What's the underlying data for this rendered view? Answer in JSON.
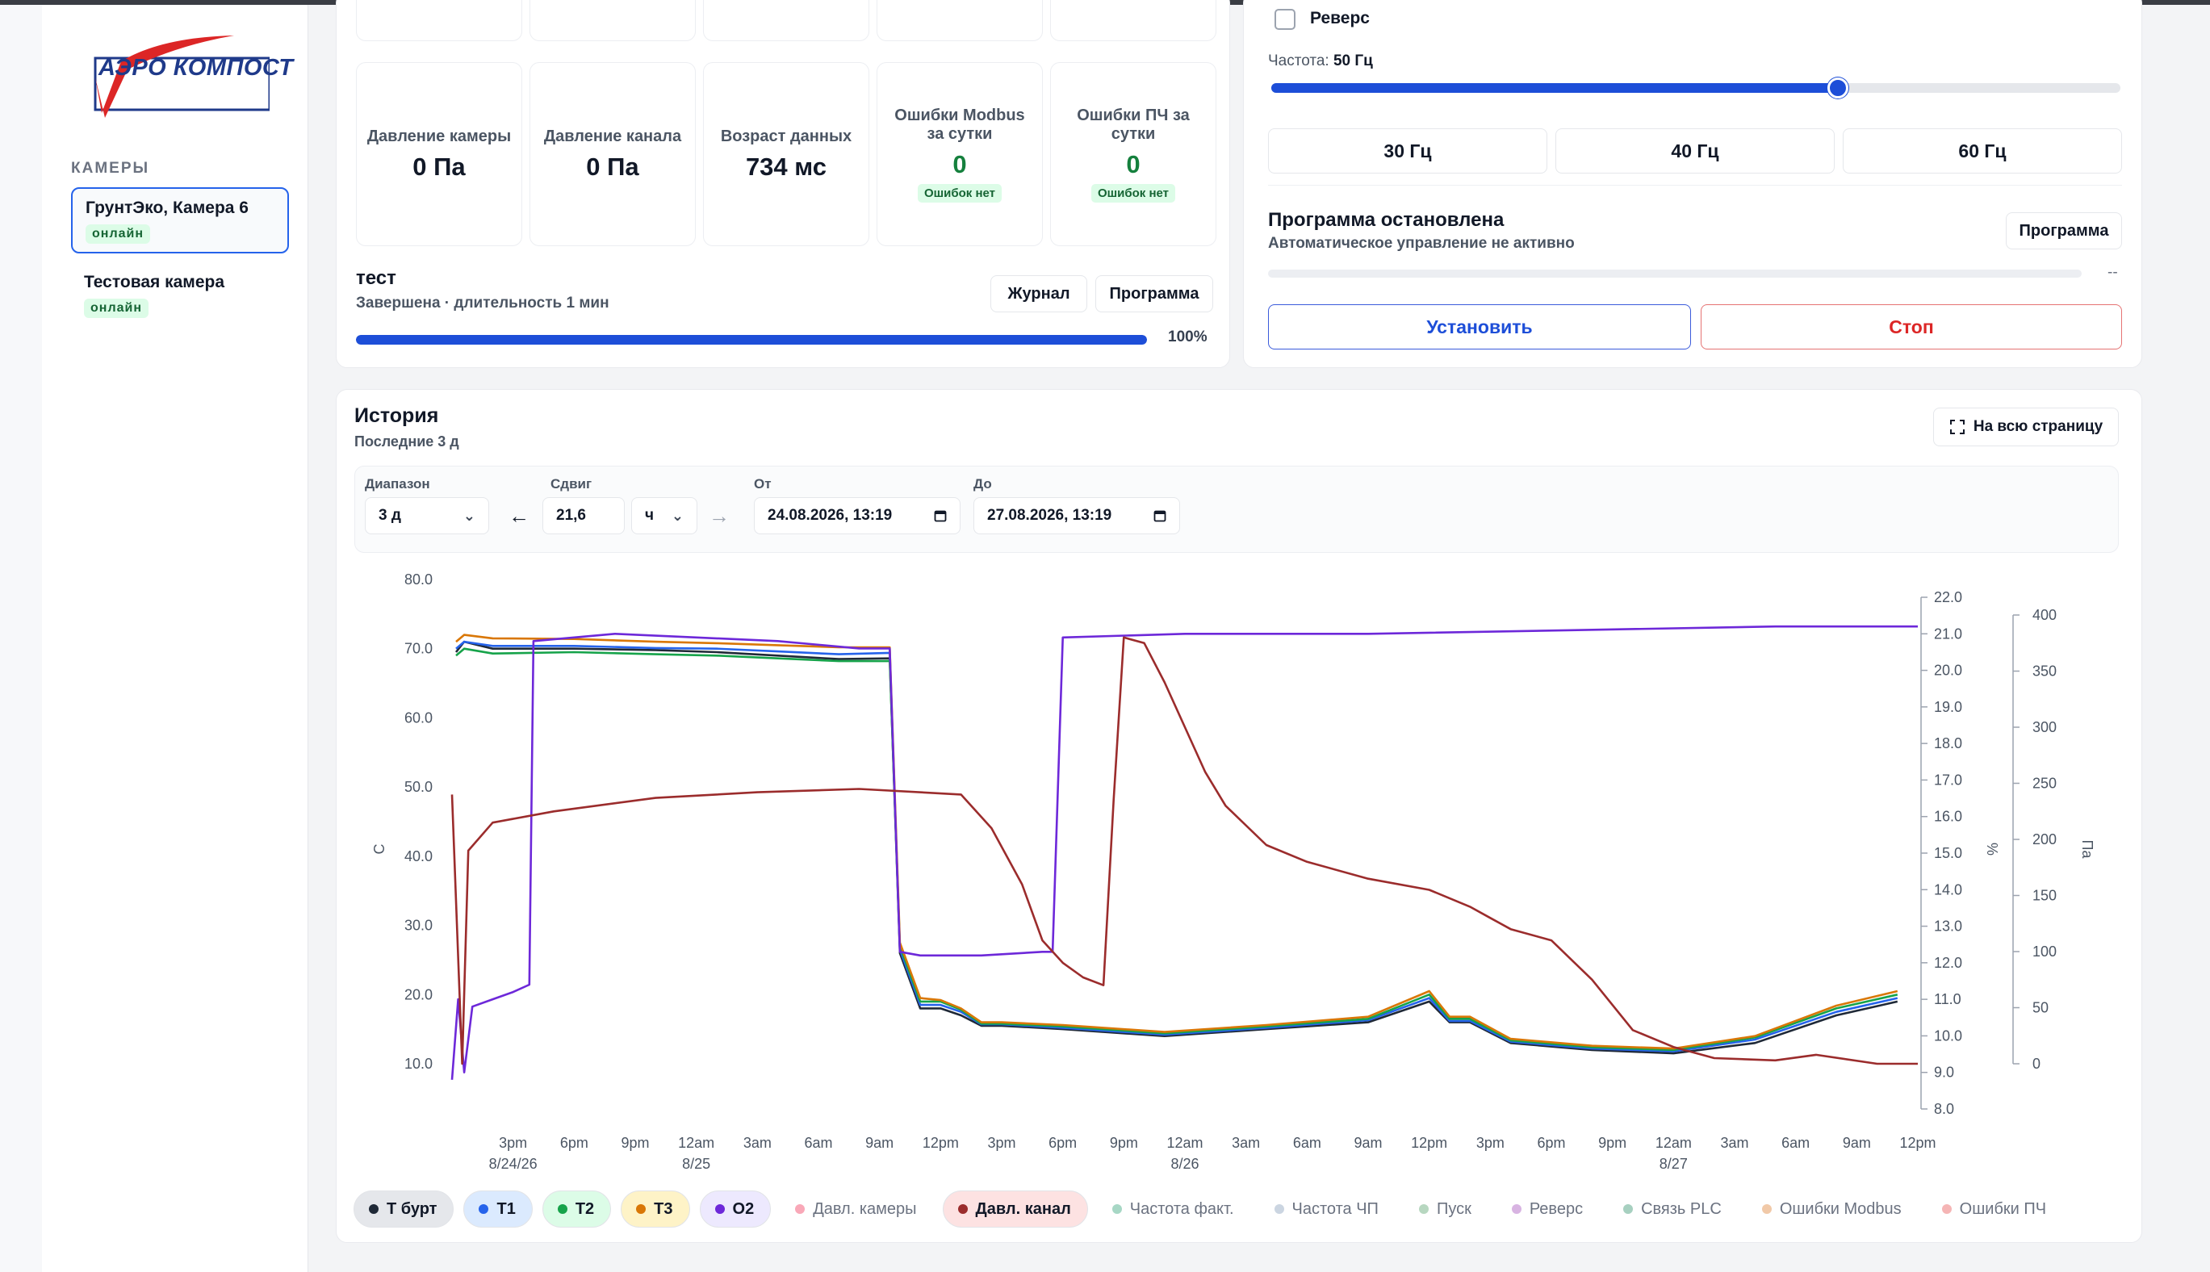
{
  "app": {
    "logo_text": "АЭРО КОМПОСТ"
  },
  "sidebar": {
    "section_label": "КАМЕРЫ",
    "cameras": [
      {
        "name": "ГрунтЭко, Камера 6",
        "status": "онлайн",
        "active": true
      },
      {
        "name": "Тестовая камера",
        "status": "онлайн",
        "active": false
      }
    ]
  },
  "metrics": [
    {
      "label": "Давление камеры",
      "value": "0 Па"
    },
    {
      "label": "Давление канала",
      "value": "0 Па"
    },
    {
      "label": "Возраст данных",
      "value": "734 мс"
    },
    {
      "label": "Ошибки Modbus за сутки",
      "value": "0",
      "badge": "Ошибок нет"
    },
    {
      "label": "Ошибки ПЧ за сутки",
      "value": "0",
      "badge": "Ошибок нет"
    }
  ],
  "program_run": {
    "title": "тест",
    "subtitle": "Завершена · длительность 1 мин",
    "journal_label": "Журнал",
    "program_label": "Программа",
    "progress": 1.0,
    "progress_text": "100%"
  },
  "control": {
    "reverse_label": "Реверс",
    "reverse_checked": false,
    "freq_label": "Частота:",
    "freq_value": "50 Гц",
    "freq_fraction": 0.667,
    "presets": [
      "30 Гц",
      "40 Гц",
      "60 Гц"
    ],
    "program_title": "Программа остановлена",
    "program_subtitle": "Автоматическое управление не активно",
    "program_button": "Программа",
    "program_progress_text": "--",
    "set_label": "Установить",
    "stop_label": "Стоп"
  },
  "history": {
    "title": "История",
    "subtitle": "Последние 3 д",
    "fullscreen_label": "На всю страницу",
    "range_label": "Диапазон",
    "range_value": "3 д",
    "shift_label": "Сдвиг",
    "shift_value": "21,6",
    "shift_unit": "ч",
    "from_label": "От",
    "from_value": "24.08.2026, 13:19",
    "to_label": "До",
    "to_value": "27.08.2026, 13:19"
  },
  "legend": [
    {
      "label": "Т бурт",
      "color": "#1f2937",
      "bg": "#e5e7eb",
      "on": true
    },
    {
      "label": "T1",
      "color": "#2563eb",
      "bg": "#dbeafe",
      "on": true
    },
    {
      "label": "T2",
      "color": "#16a34a",
      "bg": "#dcfce7",
      "on": true
    },
    {
      "label": "T3",
      "color": "#d97706",
      "bg": "#fef3c7",
      "on": true
    },
    {
      "label": "O2",
      "color": "#6d28d9",
      "bg": "#ede9fe",
      "on": true
    },
    {
      "label": "Давл. камеры",
      "color": "#f9a8b8",
      "bg": "#ffffff",
      "on": false
    },
    {
      "label": "Давл. канал",
      "color": "#9b2c2c",
      "bg": "#fde2e2",
      "on": true
    },
    {
      "label": "Частота факт.",
      "color": "#a7d7c5",
      "bg": "#ffffff",
      "on": false
    },
    {
      "label": "Частота ЧП",
      "color": "#cbd5e1",
      "bg": "#ffffff",
      "on": false
    },
    {
      "label": "Пуск",
      "color": "#b7d7c0",
      "bg": "#ffffff",
      "on": false
    },
    {
      "label": "Реверс",
      "color": "#d8b4e2",
      "bg": "#ffffff",
      "on": false
    },
    {
      "label": "Связь PLC",
      "color": "#a7d0c0",
      "bg": "#ffffff",
      "on": false
    },
    {
      "label": "Ошибки Modbus",
      "color": "#f1c9a8",
      "bg": "#ffffff",
      "on": false
    },
    {
      "label": "Ошибки ПЧ",
      "color": "#f5b5b5",
      "bg": "#ffffff",
      "on": false
    }
  ],
  "chart_data": {
    "type": "line",
    "title": "",
    "xlabel": "",
    "x_ticks": [
      "3pm\n8/24/26",
      "6pm",
      "9pm",
      "12am\n8/25",
      "3am",
      "6am",
      "9am",
      "12pm",
      "3pm",
      "6pm",
      "9pm",
      "12am\n8/26",
      "3am",
      "6am",
      "9am",
      "12pm",
      "3pm",
      "6pm",
      "9pm",
      "12am\n8/27",
      "3am",
      "6am",
      "9am",
      "12pm"
    ],
    "x_range_hours": [
      0,
      72
    ],
    "axes": {
      "left": {
        "label": "C",
        "ylim": [
          10,
          80
        ],
        "ticks": [
          "80.0",
          "70.0",
          "60.0",
          "50.0",
          "40.0",
          "30.0",
          "20.0",
          "10.0"
        ]
      },
      "pct": {
        "label": "%",
        "ylim": [
          8,
          22
        ],
        "ticks": [
          "22.0",
          "21.0",
          "20.0",
          "19.0",
          "18.0",
          "17.0",
          "16.0",
          "15.0",
          "14.0",
          "13.0",
          "12.0",
          "11.0",
          "10.0",
          "9.0",
          "8.0"
        ]
      },
      "pa": {
        "label": "Па",
        "ylim": [
          0,
          400
        ],
        "ticks": [
          "400",
          "350",
          "300",
          "250",
          "200",
          "150",
          "100",
          "50",
          "0"
        ]
      }
    },
    "series": [
      {
        "name": "Т бурт",
        "axis": "left",
        "color": "#1f2937",
        "points": [
          [
            0.2,
            69.5
          ],
          [
            0.6,
            71
          ],
          [
            2,
            70
          ],
          [
            6,
            70
          ],
          [
            10,
            69.8
          ],
          [
            13,
            69.5
          ],
          [
            16,
            69
          ],
          [
            19,
            68.5
          ],
          [
            21.5,
            68.6
          ],
          [
            22,
            26
          ],
          [
            23,
            18
          ],
          [
            24,
            18
          ],
          [
            25,
            17
          ],
          [
            26,
            15.5
          ],
          [
            27,
            15.5
          ],
          [
            30,
            15
          ],
          [
            35,
            14
          ],
          [
            40,
            15
          ],
          [
            45,
            16
          ],
          [
            48,
            19
          ],
          [
            49,
            16
          ],
          [
            50,
            16
          ],
          [
            52,
            13
          ],
          [
            56,
            12
          ],
          [
            60,
            11.5
          ],
          [
            64,
            13
          ],
          [
            68,
            17
          ],
          [
            71,
            19
          ]
        ]
      },
      {
        "name": "T1",
        "axis": "left",
        "color": "#2563eb",
        "points": [
          [
            0.2,
            70
          ],
          [
            0.6,
            71
          ],
          [
            2,
            70.4
          ],
          [
            6,
            70.4
          ],
          [
            10,
            70.1
          ],
          [
            13,
            70
          ],
          [
            16,
            69.6
          ],
          [
            19,
            69.2
          ],
          [
            21.5,
            69.4
          ],
          [
            22,
            26.5
          ],
          [
            23,
            18.5
          ],
          [
            24,
            18.5
          ],
          [
            25,
            17.5
          ],
          [
            26,
            15.7
          ],
          [
            27,
            15.7
          ],
          [
            30,
            15.2
          ],
          [
            35,
            14.2
          ],
          [
            40,
            15.2
          ],
          [
            45,
            16.3
          ],
          [
            48,
            19.5
          ],
          [
            49,
            16.2
          ],
          [
            50,
            16.2
          ],
          [
            52,
            13.2
          ],
          [
            56,
            12.2
          ],
          [
            60,
            11.8
          ],
          [
            64,
            13.5
          ],
          [
            68,
            17.5
          ],
          [
            71,
            19.5
          ]
        ]
      },
      {
        "name": "T2",
        "axis": "left",
        "color": "#16a34a",
        "points": [
          [
            0.2,
            69
          ],
          [
            0.6,
            70
          ],
          [
            2,
            69.3
          ],
          [
            6,
            69.5
          ],
          [
            10,
            69.2
          ],
          [
            13,
            69
          ],
          [
            16,
            68.6
          ],
          [
            19,
            68.2
          ],
          [
            21.5,
            68.2
          ],
          [
            22,
            27
          ],
          [
            23,
            19
          ],
          [
            24,
            19
          ],
          [
            25,
            17.8
          ],
          [
            26,
            15.8
          ],
          [
            27,
            15.8
          ],
          [
            30,
            15.4
          ],
          [
            35,
            14.4
          ],
          [
            40,
            15.4
          ],
          [
            45,
            16.5
          ],
          [
            48,
            20
          ],
          [
            49,
            16.5
          ],
          [
            50,
            16.5
          ],
          [
            52,
            13.4
          ],
          [
            56,
            12.4
          ],
          [
            60,
            12
          ],
          [
            64,
            13.8
          ],
          [
            68,
            18
          ],
          [
            71,
            20
          ]
        ]
      },
      {
        "name": "T3",
        "axis": "left",
        "color": "#d97706",
        "points": [
          [
            0.2,
            71
          ],
          [
            0.6,
            72
          ],
          [
            2,
            71.5
          ],
          [
            6,
            71.4
          ],
          [
            10,
            71
          ],
          [
            13,
            70.8
          ],
          [
            16,
            70.5
          ],
          [
            19,
            70.2
          ],
          [
            21.5,
            70.2
          ],
          [
            22,
            27.5
          ],
          [
            23,
            19.5
          ],
          [
            24,
            19.2
          ],
          [
            25,
            18
          ],
          [
            26,
            16
          ],
          [
            27,
            16
          ],
          [
            30,
            15.6
          ],
          [
            35,
            14.6
          ],
          [
            40,
            15.6
          ],
          [
            45,
            16.8
          ],
          [
            48,
            20.5
          ],
          [
            49,
            16.8
          ],
          [
            50,
            16.8
          ],
          [
            52,
            13.6
          ],
          [
            56,
            12.6
          ],
          [
            60,
            12.2
          ],
          [
            64,
            14
          ],
          [
            68,
            18.4
          ],
          [
            71,
            20.5
          ]
        ]
      },
      {
        "name": "O2",
        "axis": "pct",
        "color": "#6d28d9",
        "points": [
          [
            0,
            8.8
          ],
          [
            0.3,
            11
          ],
          [
            0.6,
            9
          ],
          [
            1,
            10.8
          ],
          [
            2,
            11
          ],
          [
            3,
            11.2
          ],
          [
            3.8,
            11.4
          ],
          [
            4,
            20.8
          ],
          [
            8,
            21
          ],
          [
            12,
            20.9
          ],
          [
            16,
            20.8
          ],
          [
            20,
            20.6
          ],
          [
            21.5,
            20.6
          ],
          [
            22,
            12.3
          ],
          [
            23,
            12.2
          ],
          [
            26,
            12.2
          ],
          [
            29,
            12.3
          ],
          [
            29.5,
            12.3
          ],
          [
            30,
            20.9
          ],
          [
            36,
            21
          ],
          [
            45,
            21
          ],
          [
            55,
            21.1
          ],
          [
            65,
            21.2
          ],
          [
            72,
            21.2
          ]
        ]
      },
      {
        "name": "Давл. канал",
        "axis": "pa",
        "color": "#9b2c2c",
        "points": [
          [
            0,
            240
          ],
          [
            0.5,
            0
          ],
          [
            0.8,
            190
          ],
          [
            2,
            215
          ],
          [
            5,
            225
          ],
          [
            10,
            237
          ],
          [
            15,
            242
          ],
          [
            20,
            245
          ],
          [
            25,
            240
          ],
          [
            26.5,
            210
          ],
          [
            28,
            160
          ],
          [
            29,
            110
          ],
          [
            30,
            90
          ],
          [
            31,
            77
          ],
          [
            32,
            70
          ],
          [
            32.5,
            235
          ],
          [
            33,
            380
          ],
          [
            34,
            375
          ],
          [
            35,
            340
          ],
          [
            36,
            300
          ],
          [
            37,
            260
          ],
          [
            38,
            230
          ],
          [
            40,
            195
          ],
          [
            42,
            180
          ],
          [
            45,
            165
          ],
          [
            48,
            155
          ],
          [
            50,
            140
          ],
          [
            51,
            130
          ],
          [
            52,
            120
          ],
          [
            54,
            110
          ],
          [
            56,
            75
          ],
          [
            58,
            30
          ],
          [
            60,
            15
          ],
          [
            62,
            5
          ],
          [
            65,
            3
          ],
          [
            67,
            8
          ],
          [
            70,
            0
          ],
          [
            72,
            0
          ]
        ]
      }
    ]
  }
}
